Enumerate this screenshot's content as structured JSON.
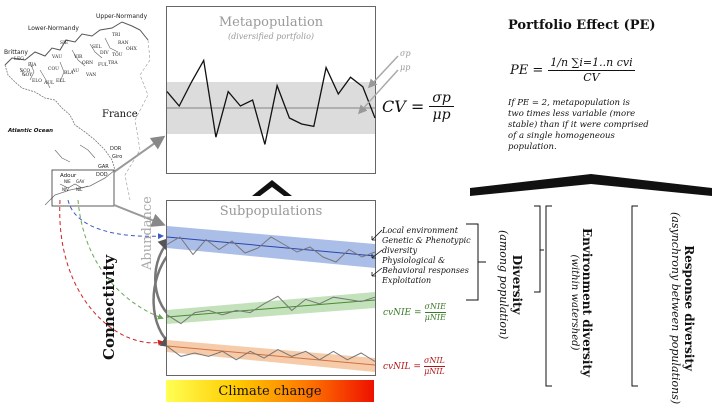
{
  "map": {
    "region_lower": "Lower-Normandy",
    "region_upper": "Upper-Normandy",
    "brittany": "Brittany",
    "france": "France",
    "ocean": "Atlantic Ocean",
    "adour": "Adour",
    "rivers_north": [
      "TRI",
      "SIE",
      "SEL",
      "DIV",
      "TOU",
      "VIR",
      "ORN",
      "VAU",
      "COU",
      "SCO",
      "EJA",
      "LEG",
      "GOY",
      "ELO",
      "AUL",
      "ELL",
      "BLA",
      "AU",
      "VAN",
      "FUL",
      "TRA",
      "RAN",
      "OHX"
    ],
    "rivers_south": [
      "DOR",
      "Giro",
      "GAR",
      "DOD",
      "NIE",
      "NIV",
      "GAV",
      "NIL"
    ]
  },
  "metapopulation": {
    "title": "Metapopulation",
    "subtitle": "(diversified portfolio)",
    "sigma_label": "σp",
    "mu_label": "μp",
    "cv_lhs": "CV =",
    "cv_num": "σp",
    "cv_den": "μp",
    "series": [
      0.62,
      0.5,
      0.7,
      0.88,
      0.24,
      0.62,
      0.5,
      0.55,
      0.18,
      0.67,
      0.4,
      0.35,
      0.33,
      0.82,
      0.6,
      0.74,
      0.66,
      0.4
    ]
  },
  "abundance_label": "Abundance",
  "subpopulations": {
    "title": "Subpopulations",
    "blue_series": [
      0.55,
      0.7,
      0.35,
      0.65,
      0.45,
      0.62,
      0.38,
      0.48,
      0.7,
      0.55,
      0.4,
      0.5,
      0.3,
      0.2,
      0.45,
      0.3,
      0.4
    ],
    "green_series": [
      0.3,
      0.1,
      0.35,
      0.4,
      0.3,
      0.4,
      0.35,
      0.55,
      0.72,
      0.4,
      0.65,
      0.55,
      0.7,
      0.65,
      0.6,
      0.7
    ],
    "orange_series": [
      0.7,
      0.4,
      0.5,
      0.4,
      0.55,
      0.3,
      0.55,
      0.35,
      0.6,
      0.4,
      0.55,
      0.3,
      0.55,
      0.3,
      0.5,
      0.25
    ]
  },
  "connectivity": "Connectivity",
  "climate_change": "Climate change",
  "drivers": [
    "Local environment",
    "Genetic & Phenotypic",
    "diversity",
    "Physiological &",
    "Behavioral responses",
    "Exploitation"
  ],
  "cv_nie": {
    "lhs": "cvNIE =",
    "num": "σNIE",
    "den": "μNIE"
  },
  "cv_nil": {
    "lhs": "cvNIL =",
    "num": "σNIL",
    "den": "μNIL"
  },
  "portfolio": {
    "title": "Portfolio Effect (PE)",
    "formula_lhs": "PE =",
    "formula_num": "1/n ∑i=1..n cvi",
    "formula_den": "CV",
    "note": [
      "If PE = 2, metapopulation is",
      "two times less variable (more",
      "stable) than if it were comprised",
      "of a single homogeneous",
      "population."
    ]
  },
  "diversity": {
    "title": "Diversity",
    "subtitle": "(among population)",
    "env_title": "Environment diversity",
    "env_subtitle": "(within watershed)",
    "resp_title": "Response diversity",
    "resp_subtitle": "(asynchrony between populations)"
  },
  "colors": {
    "blue": "#8fa8e0",
    "green": "#b9dcae",
    "orange": "#f5c29b",
    "gray_band": "#dcdcdc",
    "nie_text": "#3a7a2a",
    "nil_text": "#b01818"
  }
}
